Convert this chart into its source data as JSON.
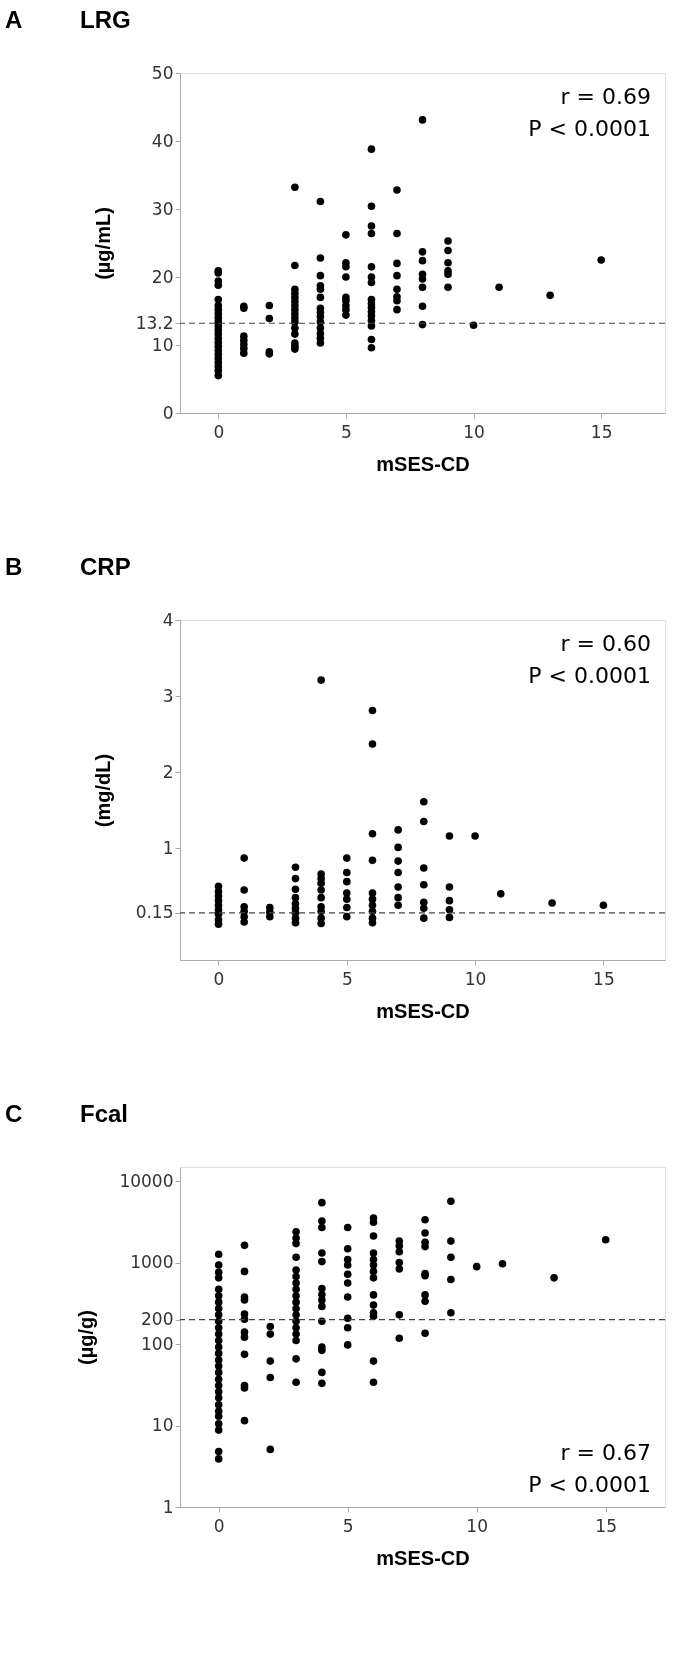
{
  "chart_data": [
    {
      "type": "scatter",
      "title": "LRG",
      "xlabel": "mSES-CD",
      "ylabel": "(µg/mL)",
      "annotations": [
        "A",
        "r = 0.69",
        "P < 0.0001"
      ],
      "xlim": [
        -1.5,
        17.5
      ],
      "xticks": [
        0,
        5,
        10,
        15
      ],
      "ylim": [
        0,
        50
      ],
      "yticks": [
        0,
        10,
        13.2,
        20,
        30,
        40,
        50
      ],
      "grid": false,
      "legend": false,
      "marker": "circle",
      "ref_lines": [
        {
          "axis": "y",
          "value": 13.2,
          "line_style": "dashed"
        }
      ],
      "series": [
        {
          "color": "#000000",
          "x": [
            0,
            0,
            0,
            0,
            0,
            0,
            0,
            0,
            0,
            0,
            0,
            0,
            0,
            0,
            0,
            0,
            0,
            0,
            0,
            0,
            0,
            0,
            0,
            1,
            1,
            1,
            1,
            1,
            1,
            1,
            2,
            2,
            2,
            2,
            3,
            3,
            3,
            3,
            3,
            3,
            3,
            3,
            3,
            3,
            3,
            3,
            3,
            3,
            3,
            3,
            4,
            4,
            4,
            4,
            4,
            4,
            4,
            4,
            4,
            4,
            4,
            4,
            4,
            4,
            5,
            5,
            5,
            5,
            5,
            5,
            5,
            5,
            5,
            6,
            6,
            6,
            6,
            6,
            6,
            6,
            6,
            6,
            6,
            6,
            6,
            6,
            6,
            6,
            6,
            7,
            7,
            7,
            7,
            7,
            7,
            7,
            7,
            8,
            8,
            8,
            8,
            8,
            8,
            8,
            8,
            9,
            9,
            9,
            9,
            9,
            9,
            10,
            11,
            13,
            15
          ],
          "values": [
            20.9,
            20.6,
            19.4,
            18.8,
            16.7,
            15.8,
            15.2,
            14.6,
            14.0,
            13.4,
            12.8,
            12.2,
            11.6,
            11.0,
            10.4,
            9.8,
            9.2,
            8.6,
            8.0,
            7.4,
            6.8,
            6.2,
            5.5,
            15.7,
            15.4,
            11.3,
            10.7,
            10.1,
            9.5,
            8.8,
            15.8,
            13.9,
            9.0,
            8.7,
            33.2,
            21.7,
            18.2,
            17.6,
            17.0,
            16.4,
            15.8,
            15.2,
            14.6,
            14.0,
            13.4,
            12.5,
            11.6,
            10.3,
            9.8,
            9.4,
            31.1,
            22.8,
            20.2,
            18.7,
            18.2,
            17.0,
            15.4,
            14.8,
            14.2,
            13.4,
            12.5,
            11.7,
            11.0,
            10.3,
            26.2,
            22.1,
            21.5,
            20.0,
            17.0,
            16.5,
            15.8,
            15.2,
            14.4,
            38.8,
            30.4,
            27.5,
            26.4,
            21.5,
            20.0,
            19.2,
            16.7,
            16.1,
            15.5,
            14.9,
            14.3,
            13.6,
            12.8,
            10.8,
            9.6,
            32.8,
            26.4,
            22.0,
            20.2,
            18.2,
            17.1,
            16.5,
            15.2,
            43.1,
            23.7,
            22.4,
            20.4,
            19.7,
            18.5,
            15.7,
            13.0,
            25.3,
            23.9,
            22.1,
            20.9,
            20.4,
            18.5,
            12.9,
            18.5,
            17.3,
            22.5
          ]
        }
      ]
    },
    {
      "type": "scatter",
      "title": "CRP",
      "xlabel": "mSES-CD",
      "ylabel": "(mg/dL)",
      "annotations": [
        "B",
        "r = 0.60",
        "P < 0.0001"
      ],
      "xlim": [
        -1.5,
        17.4
      ],
      "xticks": [
        0,
        5,
        10,
        15
      ],
      "ylim": [
        -0.47,
        4
      ],
      "yticks": [
        0.15,
        1,
        2,
        3,
        4
      ],
      "grid": false,
      "legend": false,
      "marker": "circle",
      "ref_lines": [
        {
          "axis": "y",
          "value": 0.15,
          "line_style": "dashed"
        }
      ],
      "series": [
        {
          "color": "#000000",
          "x": [
            0,
            0,
            0,
            0,
            0,
            0,
            0,
            0,
            0,
            1,
            1,
            1,
            1,
            1,
            1,
            2,
            2,
            2,
            3,
            3,
            3,
            3,
            3,
            3,
            3,
            3,
            3,
            4,
            4,
            4,
            4,
            4,
            4,
            4,
            4,
            4,
            4,
            5,
            5,
            5,
            5,
            5,
            5,
            5,
            6,
            6,
            6,
            6,
            6,
            6,
            6,
            6,
            6,
            6,
            7,
            7,
            7,
            7,
            7,
            7,
            7,
            8,
            8,
            8,
            8,
            8,
            8,
            8,
            9,
            9,
            9,
            9,
            9,
            10,
            11,
            13,
            15
          ],
          "values": [
            0.5,
            0.43,
            0.37,
            0.31,
            0.25,
            0.19,
            0.13,
            0.06,
            0.0,
            0.87,
            0.45,
            0.23,
            0.17,
            0.1,
            0.03,
            0.22,
            0.16,
            0.1,
            0.75,
            0.6,
            0.46,
            0.35,
            0.27,
            0.21,
            0.15,
            0.08,
            0.02,
            3.21,
            0.66,
            0.6,
            0.54,
            0.45,
            0.35,
            0.23,
            0.17,
            0.08,
            0.01,
            0.87,
            0.68,
            0.56,
            0.41,
            0.33,
            0.22,
            0.1,
            2.81,
            2.37,
            1.19,
            0.84,
            0.41,
            0.33,
            0.25,
            0.17,
            0.08,
            0.02,
            1.24,
            1.01,
            0.83,
            0.68,
            0.49,
            0.35,
            0.25,
            1.61,
            1.35,
            0.74,
            0.52,
            0.29,
            0.21,
            0.08,
            1.16,
            0.49,
            0.31,
            0.19,
            0.09,
            1.16,
            0.4,
            0.28,
            0.25
          ]
        }
      ]
    },
    {
      "type": "scatter",
      "title": "Fcal",
      "xlabel": "mSES-CD",
      "ylabel": "(µg/g)",
      "annotations": [
        "C",
        "r = 0.67",
        "P < 0.0001"
      ],
      "xlim": [
        -1.5,
        17.3
      ],
      "xticks": [
        0,
        5,
        10,
        15
      ],
      "ylim": [
        1,
        15000
      ],
      "yticks": [
        1,
        10,
        100,
        200,
        1000,
        10000
      ],
      "log": "y",
      "grid": false,
      "legend": false,
      "marker": "circle",
      "ref_lines": [
        {
          "axis": "y",
          "value": 200,
          "line_style": "dashed"
        }
      ],
      "series": [
        {
          "color": "#000000",
          "x": [
            0,
            0,
            0,
            0,
            0,
            0,
            0,
            0,
            0,
            0,
            0,
            0,
            0,
            0,
            0,
            0,
            0,
            0,
            0,
            0,
            0,
            0,
            0,
            0,
            0,
            0,
            0,
            0,
            0,
            1,
            1,
            1,
            1,
            1,
            1,
            1,
            1,
            1,
            1,
            1,
            1,
            2,
            2,
            2,
            2,
            2,
            3,
            3,
            3,
            3,
            3,
            3,
            3,
            3,
            3,
            3,
            3,
            3,
            3,
            3,
            3,
            3,
            3,
            3,
            4,
            4,
            4,
            4,
            4,
            4,
            4,
            4,
            4,
            4,
            4,
            4,
            4,
            4,
            5,
            5,
            5,
            5,
            5,
            5,
            5,
            5,
            5,
            5,
            6,
            6,
            6,
            6,
            6,
            6,
            6,
            6,
            6,
            6,
            6,
            6,
            6,
            6,
            7,
            7,
            7,
            7,
            7,
            7,
            7,
            8,
            8,
            8,
            8,
            8,
            8,
            8,
            8,
            8,
            9,
            9,
            9,
            9,
            9,
            10,
            11,
            13,
            15
          ],
          "values": [
            1270,
            938,
            765,
            653,
            472,
            394,
            328,
            274,
            229,
            191,
            159,
            133,
            111,
            92,
            77,
            64,
            54,
            45,
            37,
            31,
            26,
            22,
            18,
            15,
            13,
            10.5,
            8.8,
            4.8,
            3.9,
            1636,
            783,
            380,
            349,
            234,
            203,
            141,
            122,
            75,
            31,
            29,
            11.5,
            165,
            133,
            62,
            39,
            5.1,
            2405,
            2009,
            1718,
            1167,
            813,
            678,
            565,
            472,
            394,
            328,
            274,
            229,
            191,
            159,
            133,
            111,
            66,
            34,
            5470,
            3250,
            2715,
            1316,
            1033,
            483,
            408,
            349,
            291,
            191,
            92,
            84,
            45,
            33,
            2715,
            1485,
            1098,
            938,
            720,
            565,
            380,
            208,
            159,
            98,
            3540,
            3140,
            2134,
            1316,
            1098,
            938,
            783,
            653,
            403,
            302,
            243,
            220,
            62,
            34,
            1845,
            1614,
            1365,
            1009,
            842,
            229,
            118,
            3375,
            2323,
            1780,
            1578,
            738,
            693,
            403,
            337,
            136,
            5675,
            1845,
            1167,
            623,
            243,
            895,
            973,
            653,
            1914
          ]
        }
      ]
    }
  ]
}
